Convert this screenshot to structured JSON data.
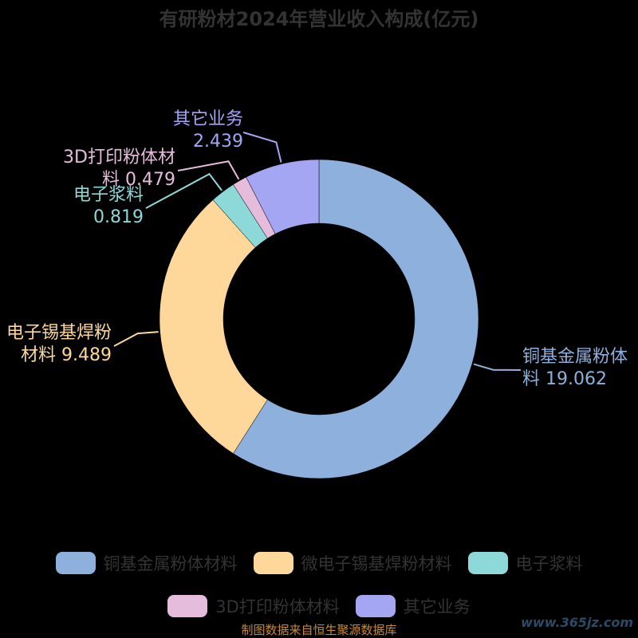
{
  "title": "有研粉材2024年营业收入构成(亿元)",
  "source": "制图数据来自恒生聚源数据库",
  "watermark": "www.365jz.com",
  "chart_data": {
    "type": "pie",
    "style": "donut",
    "title": "有研粉材2024年营业收入构成(亿元)",
    "series": [
      {
        "name": "铜基金属粉体材料",
        "value": 19.062,
        "color": "#8eb0dc",
        "label_lines": [
          "铜基金属粉体",
          "料 19.062"
        ]
      },
      {
        "name": "微电子锡基焊粉材料",
        "value": 9.489,
        "color": "#fdd89a",
        "label_lines": [
          "电子锡基焊粉",
          "材料 9.489"
        ]
      },
      {
        "name": "电子浆料",
        "value": 0.819,
        "color": "#8dd8d8",
        "label_lines": [
          "电子浆料",
          "0.819"
        ]
      },
      {
        "name": "3D打印粉体材料",
        "value": 0.479,
        "color": "#e6bcdc",
        "label_lines": [
          "3D打印粉体材",
          "料 0.479"
        ]
      },
      {
        "name": "其它业务",
        "value": 2.439,
        "color": "#a4a6f4",
        "label_lines": [
          "其它业务",
          "2.439"
        ]
      }
    ],
    "legend_position": "bottom"
  }
}
